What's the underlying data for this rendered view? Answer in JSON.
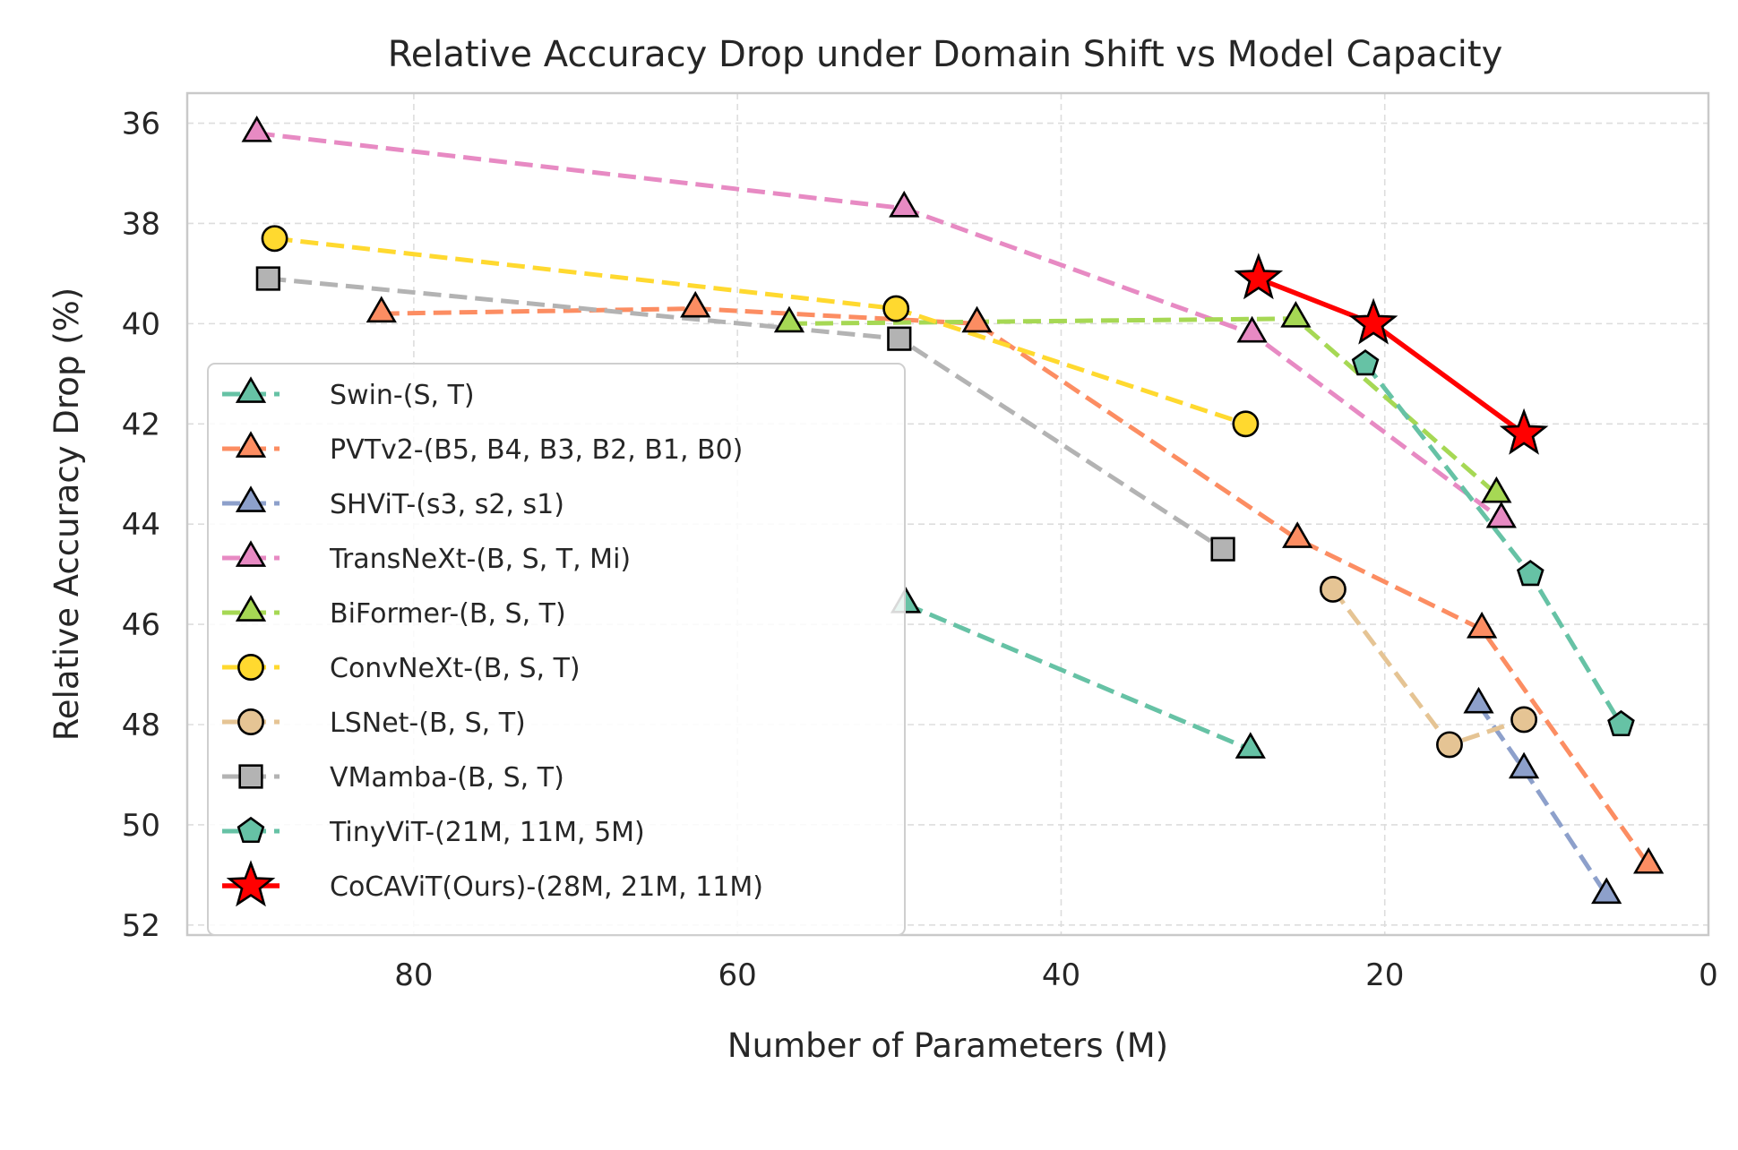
{
  "chart_data": {
    "type": "line",
    "title": "Relative Accuracy Drop under Domain Shift vs Model Capacity",
    "xlabel": "Number of Parameters (M)",
    "ylabel": "Relative Accuracy Drop (%)",
    "xlim": [
      94,
      0
    ],
    "ylim": [
      52.2,
      35.4
    ],
    "x_ticks": [
      80,
      60,
      40,
      20,
      0
    ],
    "y_ticks": [
      36,
      38,
      40,
      42,
      44,
      46,
      48,
      50,
      52
    ],
    "grid": true,
    "legend_position": "lower-left",
    "series": [
      {
        "name": "Swin-(S, T)",
        "color": "#66c2a5",
        "marker": "triangle",
        "line": "dashed",
        "x": [
          49.6,
          28.3
        ],
        "y": [
          45.6,
          48.5
        ]
      },
      {
        "name": "PVTv2-(B5, B4, B3, B2, B1, B0)",
        "color": "#fc8d62",
        "marker": "triangle",
        "line": "dashed",
        "x": [
          82.0,
          62.6,
          45.2,
          25.4,
          14.0,
          3.7
        ],
        "y": [
          39.8,
          39.7,
          40.0,
          44.3,
          46.1,
          50.8
        ]
      },
      {
        "name": "SHViT-(s3, s2, s1)",
        "color": "#8da0cb",
        "marker": "triangle",
        "line": "dashed",
        "x": [
          14.2,
          11.4,
          6.3
        ],
        "y": [
          47.6,
          48.9,
          51.4
        ]
      },
      {
        "name": "TransNeXt-(B, S, T, Mi)",
        "color": "#e78ac3",
        "marker": "triangle",
        "line": "dashed",
        "x": [
          89.7,
          49.7,
          28.2,
          12.8
        ],
        "y": [
          36.2,
          37.7,
          40.2,
          43.9
        ]
      },
      {
        "name": "BiFormer-(B, S, T)",
        "color": "#a6d854",
        "marker": "triangle",
        "line": "dashed",
        "x": [
          56.8,
          25.5,
          13.1
        ],
        "y": [
          40.0,
          39.9,
          43.4
        ]
      },
      {
        "name": "ConvNeXt-(B, S, T)",
        "color": "#ffd92f",
        "marker": "circle",
        "line": "dashed",
        "x": [
          88.6,
          50.2,
          28.6
        ],
        "y": [
          38.3,
          39.7,
          42.0
        ]
      },
      {
        "name": "LSNet-(B, S, T)",
        "color": "#e5c494",
        "marker": "circle",
        "line": "dashed",
        "x": [
          23.2,
          16.0,
          11.4
        ],
        "y": [
          45.3,
          48.4,
          47.9
        ]
      },
      {
        "name": "VMamba-(B, S, T)",
        "color": "#b3b3b3",
        "marker": "square",
        "line": "dashed",
        "x": [
          89.0,
          50.0,
          30.0
        ],
        "y": [
          39.1,
          40.3,
          44.5
        ]
      },
      {
        "name": "TinyViT-(21M, 11M, 5M)",
        "color": "#66c2a5",
        "marker": "pentagon",
        "line": "dashed",
        "x": [
          21.2,
          11.0,
          5.4
        ],
        "y": [
          40.8,
          45.0,
          48.0
        ]
      },
      {
        "name": "CoCAViT(Ours)-(28M, 21M, 11M)",
        "color": "#ff0000",
        "marker": "star",
        "line": "solid",
        "x": [
          27.8,
          20.7,
          11.4
        ],
        "y": [
          39.1,
          40.0,
          42.2
        ]
      }
    ]
  }
}
